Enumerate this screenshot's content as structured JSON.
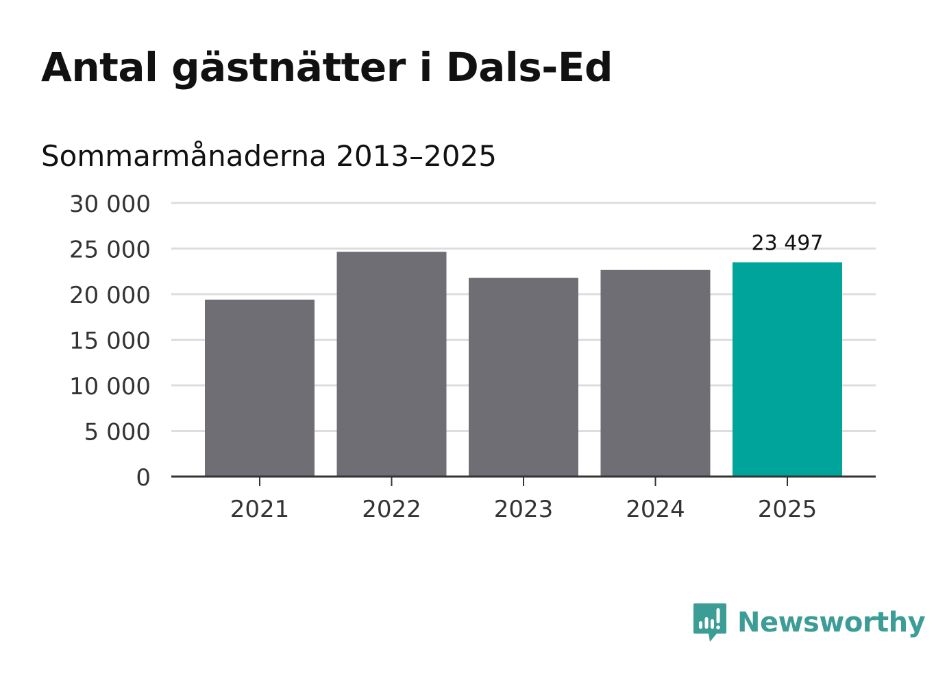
{
  "header": {
    "title": "Antal gästnätter i Dals-Ed",
    "subtitle": "Sommarmånaderna 2013–2025"
  },
  "brand": {
    "name": "Newsworthy",
    "color": "#3c9d96",
    "icon": "newsworthy-logo-icon"
  },
  "chart_data": {
    "type": "bar",
    "categories": [
      "2021",
      "2022",
      "2023",
      "2024",
      "2025"
    ],
    "values": [
      19400,
      24650,
      21800,
      22650,
      23497
    ],
    "ylim": [
      0,
      30000
    ],
    "yticks": [
      0,
      5000,
      10000,
      15000,
      20000,
      25000,
      30000
    ],
    "ytick_labels": [
      "0",
      "5 000",
      "10 000",
      "15 000",
      "20 000",
      "25 000",
      "30 000"
    ],
    "data_labels": [
      "",
      "",
      "",
      "",
      "23 497"
    ],
    "colors": {
      "default": "#6f6e74",
      "highlight": "#00a49a",
      "highlight_index": 4,
      "grid": "#dddddd",
      "axis": "#333333"
    },
    "grid": true,
    "legend": "none"
  }
}
